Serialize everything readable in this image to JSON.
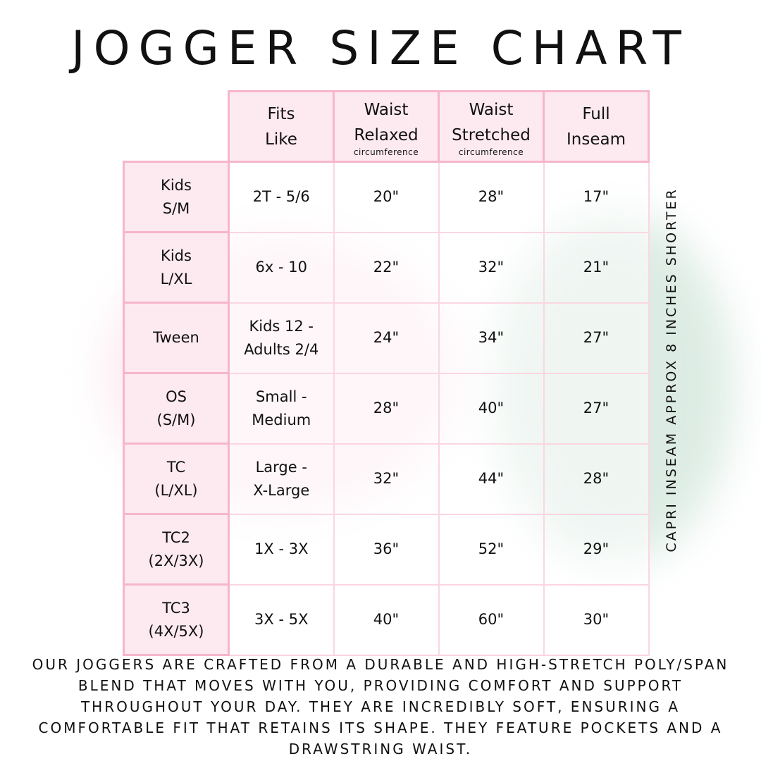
{
  "title": "JOGGER SIZE CHART",
  "columns": [
    {
      "lines": [
        "Fits",
        "Like"
      ],
      "sub": ""
    },
    {
      "lines": [
        "Waist",
        "Relaxed"
      ],
      "sub": "circumference"
    },
    {
      "lines": [
        "Waist",
        "Stretched"
      ],
      "sub": "circumference"
    },
    {
      "lines": [
        "Full",
        "Inseam"
      ],
      "sub": ""
    }
  ],
  "rows": [
    {
      "size": [
        "Kids",
        "S/M"
      ],
      "fits": [
        "2T - 5/6"
      ],
      "relaxed": "20\"",
      "stretched": "28\"",
      "inseam": "17\""
    },
    {
      "size": [
        "Kids",
        "L/XL"
      ],
      "fits": [
        "6x - 10"
      ],
      "relaxed": "22\"",
      "stretched": "32\"",
      "inseam": "21\""
    },
    {
      "size": [
        "Tween"
      ],
      "fits": [
        "Kids 12 -",
        "Adults 2/4"
      ],
      "relaxed": "24\"",
      "stretched": "34\"",
      "inseam": "27\""
    },
    {
      "size": [
        "OS",
        "(S/M)"
      ],
      "fits": [
        "Small -",
        "Medium"
      ],
      "relaxed": "28\"",
      "stretched": "40\"",
      "inseam": "27\""
    },
    {
      "size": [
        "TC",
        "(L/XL)"
      ],
      "fits": [
        "Large -",
        "X-Large"
      ],
      "relaxed": "32\"",
      "stretched": "44\"",
      "inseam": "28\""
    },
    {
      "size": [
        "TC2",
        "(2X/3X)"
      ],
      "fits": [
        "1X - 3X"
      ],
      "relaxed": "36\"",
      "stretched": "52\"",
      "inseam": "29\""
    },
    {
      "size": [
        "TC3",
        "(4X/5X)"
      ],
      "fits": [
        "3X - 5X"
      ],
      "relaxed": "40\"",
      "stretched": "60\"",
      "inseam": "30\""
    }
  ],
  "side_note": "CAPRI INSEAM APPROX 8 INCHES SHORTER",
  "footer": "Our joggers are crafted from a durable and high-stretch poly/span blend that moves with you, providing comfort and support throughout your day. They are incredibly soft, ensuring a comfortable fit that retains its shape. They feature pockets and a drawstring waist.",
  "colors": {
    "border": "#f6b6ca",
    "header_fill": "#fdeaf0"
  }
}
